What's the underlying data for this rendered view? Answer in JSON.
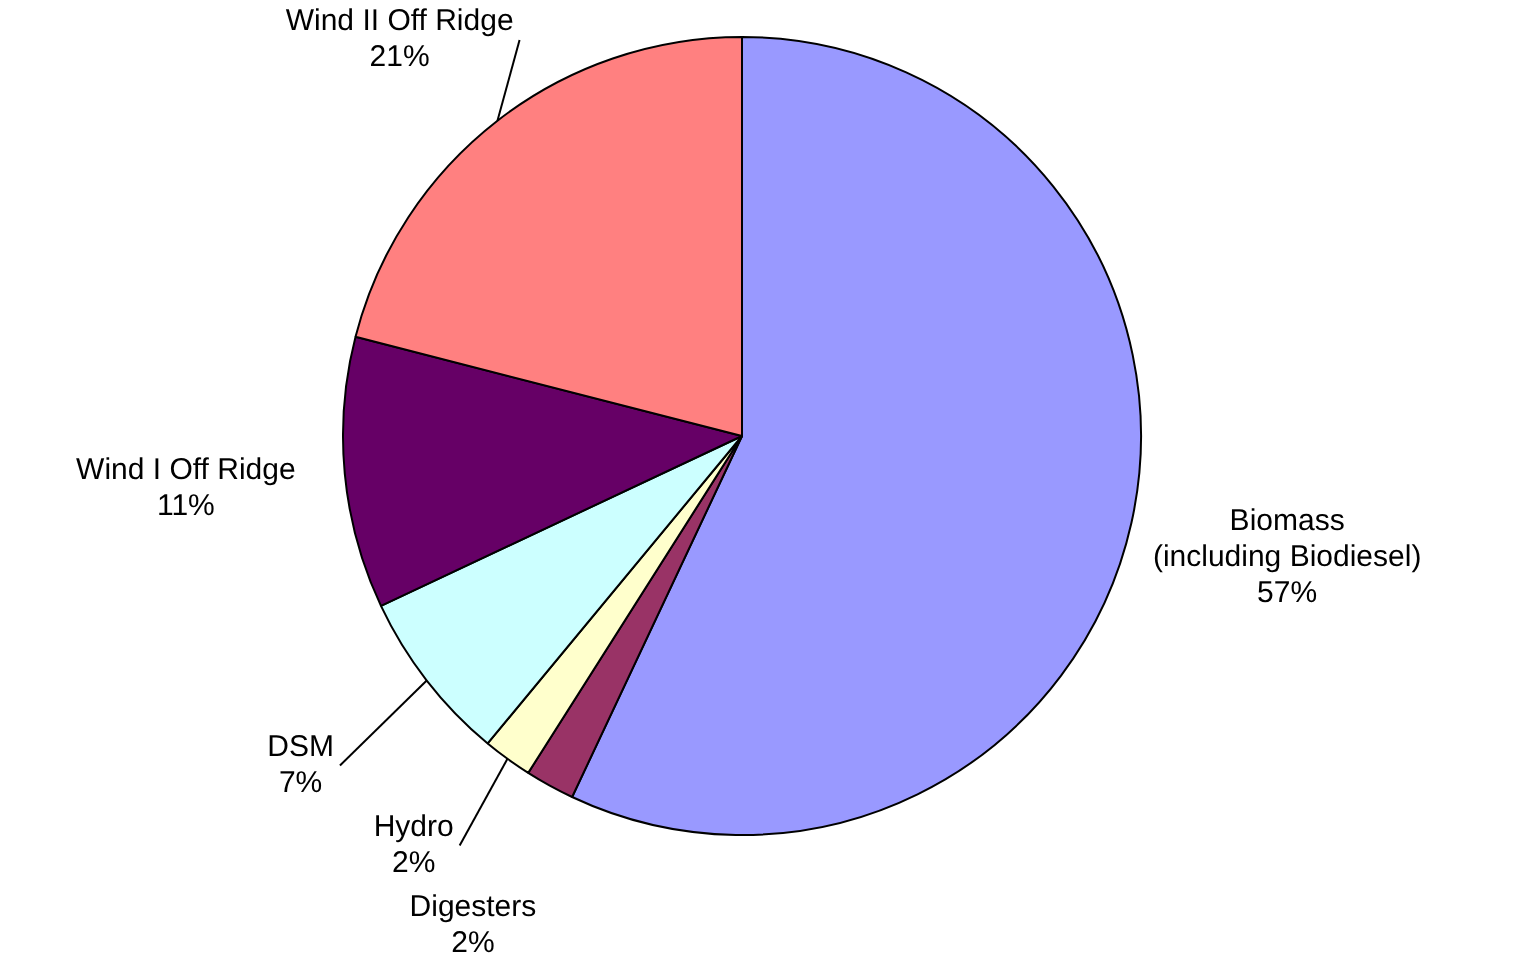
{
  "chart_data": {
    "type": "pie",
    "categories": [
      "Biomass\n(including Biodiesel)",
      "Digesters",
      "Hydro",
      "DSM",
      "Wind I Off Ridge",
      "Wind II Off Ridge"
    ],
    "values": [
      57,
      2,
      2,
      7,
      11,
      21
    ],
    "value_labels": [
      "57%",
      "2%",
      "2%",
      "7%",
      "11%",
      "21%"
    ],
    "colors": [
      "#9999ff",
      "#993366",
      "#ffffcc",
      "#ccffff",
      "#660066",
      "#ff8080"
    ],
    "legend": false
  }
}
